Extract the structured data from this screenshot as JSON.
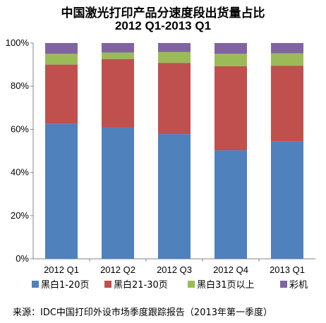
{
  "chart_data": {
    "type": "bar",
    "stacked": true,
    "title": "中国激光打印产品分速度段出货量占比",
    "subtitle": "2012 Q1-2013 Q1",
    "categories": [
      "2012 Q1",
      "2012 Q2",
      "2012 Q3",
      "2012 Q4",
      "2013 Q1"
    ],
    "series": [
      {
        "name": "黑白1-20页",
        "color": "#4F81BD",
        "values": [
          62.5,
          60.8,
          57.8,
          50.3,
          54.3
        ]
      },
      {
        "name": "黑白21-30页",
        "color": "#C0504D",
        "values": [
          27.5,
          31.8,
          33.0,
          39.0,
          35.2
        ]
      },
      {
        "name": "黑白31页以上",
        "color": "#9BBB59",
        "values": [
          5.0,
          3.0,
          5.0,
          5.7,
          5.7
        ]
      },
      {
        "name": "彩机",
        "color": "#8064A2",
        "values": [
          5.0,
          4.4,
          4.2,
          5.0,
          4.8
        ]
      }
    ],
    "ylim": [
      0,
      100
    ],
    "yticks": [
      "0%",
      "20%",
      "40%",
      "60%",
      "80%",
      "100%"
    ],
    "grid": false,
    "legend_position": "bottom"
  },
  "source": "来源：IDC中国打印外设市场季度跟踪报告（2013年第一季度）"
}
